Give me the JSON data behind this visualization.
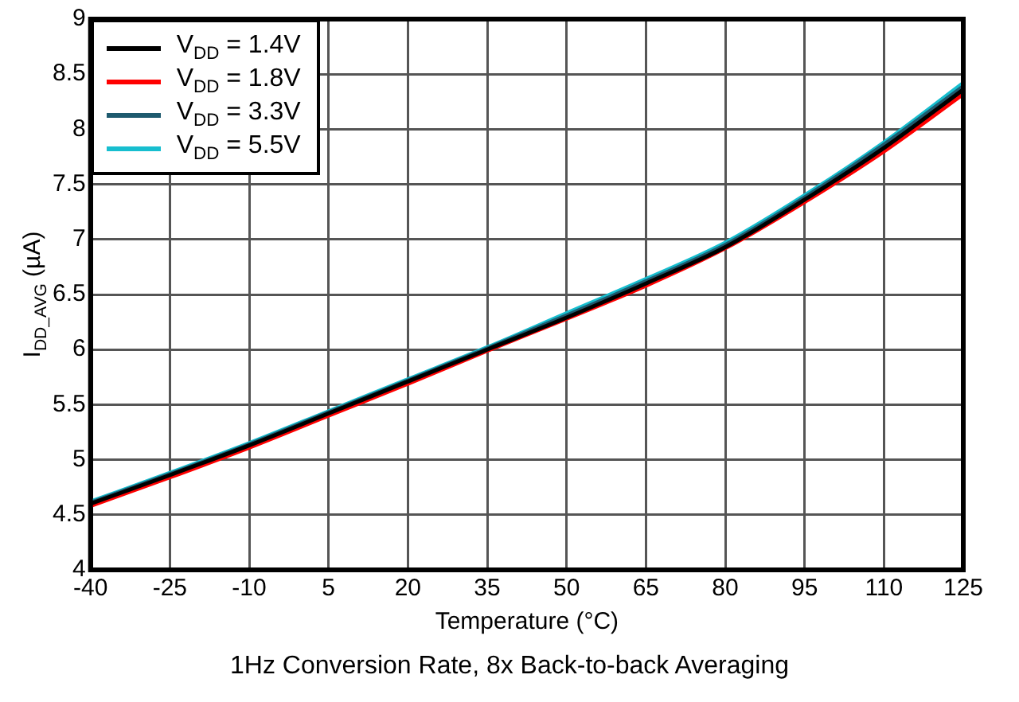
{
  "chart_data": {
    "type": "line",
    "xlabel": "Temperature (°C)",
    "ylabel": "I$_{DD_AVG}$ (µA)",
    "annotations": [
      "1Hz Conversion Rate, 8x Back-to-back Averaging"
    ],
    "x": [
      -40,
      -25,
      -10,
      5,
      20,
      35,
      50,
      65,
      80,
      95,
      110,
      125
    ],
    "series": [
      {
        "name": "V$_{DD}$ = 1.4V",
        "color": "#000000",
        "values": [
          4.6,
          4.86,
          5.13,
          5.42,
          5.71,
          6.0,
          6.29,
          6.6,
          6.93,
          7.36,
          7.83,
          8.36
        ]
      },
      {
        "name": "V$_{DD}$ = 1.8V",
        "color": "#ff0000",
        "values": [
          4.58,
          4.84,
          5.11,
          5.4,
          5.69,
          5.99,
          6.28,
          6.58,
          6.92,
          7.34,
          7.8,
          8.32
        ]
      },
      {
        "name": "V$_{DD}$ = 3.3V",
        "color": "#1e5a6e",
        "values": [
          4.61,
          4.87,
          5.14,
          5.43,
          5.72,
          6.01,
          6.31,
          6.62,
          6.95,
          7.38,
          7.86,
          8.39
        ]
      },
      {
        "name": "V$_{DD}$ = 5.5V",
        "color": "#17becf",
        "values": [
          4.62,
          4.88,
          5.15,
          5.44,
          5.73,
          6.02,
          6.33,
          6.64,
          6.97,
          7.4,
          7.88,
          8.42
        ]
      }
    ],
    "xlim": [
      -40,
      125
    ],
    "xticks": [
      -40,
      -25,
      -10,
      5,
      20,
      35,
      50,
      65,
      80,
      95,
      110,
      125
    ],
    "ylim": [
      4,
      9
    ],
    "yticks": [
      4,
      4.5,
      5,
      5.5,
      6,
      6.5,
      7,
      7.5,
      8,
      8.5,
      9
    ],
    "grid": true,
    "legend": "top left",
    "marker": "none",
    "line_style": "solid"
  }
}
